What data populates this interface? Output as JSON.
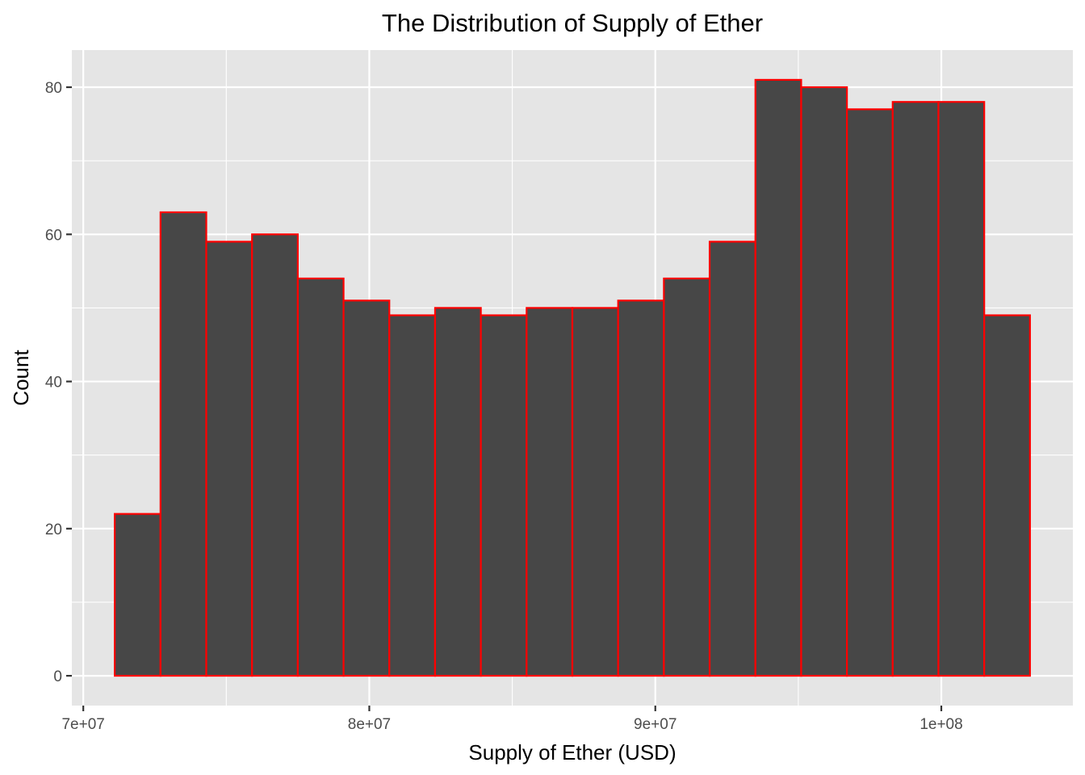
{
  "chart_data": {
    "type": "bar",
    "title": "The Distribution of Supply of Ether",
    "xlabel": "Supply of Ether (USD)",
    "ylabel": "Count",
    "bin_edges": [
      71100000,
      72700000,
      74300000,
      75900000,
      77500000,
      79100000,
      80700000,
      82300000,
      83900000,
      85500000,
      87100000,
      88700000,
      90300000,
      91900000,
      93500000,
      95100000,
      96700000,
      98300000,
      99900000,
      101500000,
      103100000
    ],
    "values": [
      22,
      63,
      59,
      60,
      54,
      51,
      49,
      50,
      49,
      50,
      50,
      51,
      54,
      59,
      81,
      80,
      77,
      78,
      78,
      49
    ],
    "xlim": [
      69600000,
      104600000
    ],
    "ylim": [
      -4.05,
      85.05
    ],
    "x_ticks": [
      70000000,
      80000000,
      90000000,
      100000000
    ],
    "x_tick_labels": [
      "7e+07",
      "8e+07",
      "9e+07",
      "1e+08"
    ],
    "y_ticks": [
      0,
      20,
      40,
      60,
      80
    ],
    "y_tick_labels": [
      "0",
      "20",
      "40",
      "60",
      "80"
    ],
    "grid": true,
    "colors": {
      "panel_background": "#e5e5e5",
      "grid": "#ffffff",
      "bar_fill": "#474747",
      "bar_outline": "#ff0000",
      "tick": "#333333"
    }
  }
}
